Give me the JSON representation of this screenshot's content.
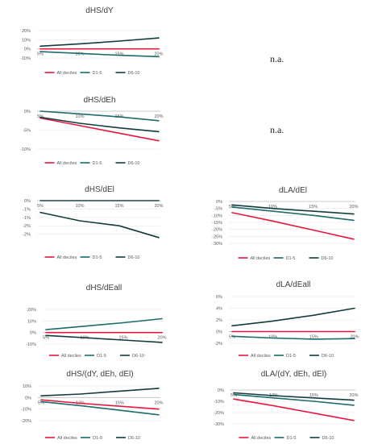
{
  "legend_labels": [
    "All deciles",
    "D1-5",
    "D6-10"
  ],
  "series_colors": [
    "#e8173f",
    "#1d6b6b",
    "#123c3c"
  ],
  "na_text": "n.a.",
  "chart_data": [
    {
      "type": "line",
      "title": "dHS/dY",
      "categories": [
        "5%",
        "10%",
        "15%",
        "20%"
      ],
      "ylim": [
        -10,
        20
      ],
      "yticks": [
        "20%",
        "10%",
        "0%",
        "-10%"
      ],
      "ytick_values": [
        20,
        10,
        0,
        -10
      ],
      "series": [
        {
          "name": "All deciles",
          "values": [
            0,
            0,
            0,
            0
          ]
        },
        {
          "name": "D1-5",
          "values": [
            -3,
            -5,
            -7,
            -8.5
          ]
        },
        {
          "name": "D6-10",
          "values": [
            3,
            5.5,
            8.5,
            12
          ]
        }
      ]
    },
    {
      "type": "line",
      "title": "dHS/dEh",
      "categories": [
        "5%",
        "10%",
        "15%",
        "20%"
      ],
      "ylim": [
        -10,
        0
      ],
      "yticks": [
        "0%",
        "-5%",
        "-10%"
      ],
      "ytick_values": [
        0,
        -5,
        -10
      ],
      "series": [
        {
          "name": "All deciles",
          "values": [
            -1.8,
            -3.8,
            -5.8,
            -7.8
          ]
        },
        {
          "name": "D1-5",
          "values": [
            0,
            -0.7,
            -1.5,
            -2.5
          ]
        },
        {
          "name": "D6-10",
          "values": [
            -1.6,
            -3.2,
            -4.4,
            -5.4
          ]
        }
      ]
    },
    {
      "type": "line",
      "title": "dHS/dEl",
      "categories": [
        "5%",
        "10%",
        "15%",
        "20%"
      ],
      "ylim": [
        -2.5,
        0
      ],
      "yticks": [
        "0%",
        "-1%",
        "-1%",
        "-2%",
        "-2%"
      ],
      "ytick_values": [
        0,
        -0.5,
        -1,
        -1.5,
        -2
      ],
      "series": [
        {
          "name": "All deciles",
          "values": [
            0,
            0,
            0,
            0
          ]
        },
        {
          "name": "D1-5",
          "values": [
            0,
            0,
            0,
            0
          ]
        },
        {
          "name": "D6-10",
          "values": [
            -0.7,
            -1.2,
            -1.5,
            -2.2
          ]
        }
      ]
    },
    {
      "type": "line",
      "title": "dLA/dEl",
      "categories": [
        "5%",
        "10%",
        "15%",
        "20%"
      ],
      "ylim": [
        -30,
        0
      ],
      "yticks": [
        "0%",
        "-5%",
        "-10%",
        "-15%",
        "-20%",
        "-25%",
        "-30%"
      ],
      "ytick_values": [
        0,
        -5,
        -10,
        -15,
        -20,
        -25,
        -30
      ],
      "series": [
        {
          "name": "All deciles",
          "values": [
            -8,
            -14,
            -20.5,
            -27
          ]
        },
        {
          "name": "D1-5",
          "values": [
            -4,
            -7,
            -10,
            -13.5
          ]
        },
        {
          "name": "D6-10",
          "values": [
            -2.5,
            -5,
            -7,
            -9
          ]
        }
      ]
    },
    {
      "type": "line",
      "title": "dHS/dEall",
      "categories": [
        "5%",
        "10%",
        "15%",
        "20%"
      ],
      "ylim": [
        -10,
        20
      ],
      "yticks": [
        "20%",
        "10%",
        "0%",
        "-10%"
      ],
      "ytick_values": [
        20,
        10,
        0,
        -10
      ],
      "series": [
        {
          "name": "All deciles",
          "values": [
            0,
            0,
            0,
            0
          ]
        },
        {
          "name": "D1-5",
          "values": [
            2.5,
            5.5,
            8.5,
            12
          ]
        },
        {
          "name": "D6-10",
          "values": [
            -2.5,
            -4.5,
            -6.5,
            -8.5
          ]
        }
      ]
    },
    {
      "type": "line",
      "title": "dLA/dEall",
      "categories": [
        "5%",
        "10%",
        "15%",
        "20%"
      ],
      "ylim": [
        -2,
        6
      ],
      "yticks": [
        "6%",
        "4%",
        "2%",
        "0%",
        "-2%"
      ],
      "ytick_values": [
        6,
        4,
        2,
        0,
        -2
      ],
      "series": [
        {
          "name": "All deciles",
          "values": [
            0,
            0,
            0,
            0
          ]
        },
        {
          "name": "D1-5",
          "values": [
            -0.8,
            -1.1,
            -1.3,
            -1.2
          ]
        },
        {
          "name": "D6-10",
          "values": [
            1,
            1.8,
            2.8,
            4
          ]
        }
      ]
    },
    {
      "type": "line",
      "title": "dHS/(dY, dEh, dEl)",
      "categories": [
        "5%",
        "10%",
        "15%",
        "20%"
      ],
      "ylim": [
        -20,
        10
      ],
      "yticks": [
        "10%",
        "0%",
        "-10%",
        "-20%"
      ],
      "ytick_values": [
        10,
        0,
        -10,
        -20
      ],
      "series": [
        {
          "name": "All deciles",
          "values": [
            -2,
            -5,
            -7.5,
            -10
          ]
        },
        {
          "name": "D1-5",
          "values": [
            -3.5,
            -7,
            -11,
            -15
          ]
        },
        {
          "name": "D6-10",
          "values": [
            1.5,
            3,
            5.5,
            8
          ]
        }
      ]
    },
    {
      "type": "line",
      "title": "dLA/(dY, dEh, dEl)",
      "categories": [
        "5%",
        "10%",
        "15%",
        "20%"
      ],
      "ylim": [
        -30,
        0
      ],
      "yticks": [
        "0%",
        "-10%",
        "-20%",
        "-30%"
      ],
      "ytick_values": [
        0,
        -10,
        -20,
        -30
      ],
      "series": [
        {
          "name": "All deciles",
          "values": [
            -8,
            -14,
            -20.5,
            -27
          ]
        },
        {
          "name": "D1-5",
          "values": [
            -4,
            -7,
            -10,
            -13.5
          ]
        },
        {
          "name": "D6-10",
          "values": [
            -2.5,
            -5,
            -7,
            -9
          ]
        }
      ]
    }
  ]
}
